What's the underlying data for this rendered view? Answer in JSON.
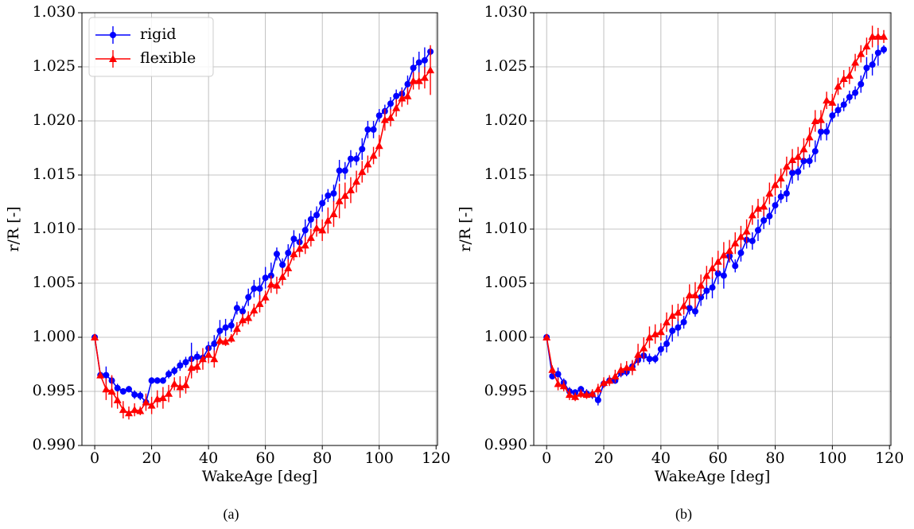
{
  "chart_data": [
    {
      "type": "line",
      "caption": "(a)",
      "x_label": "WakeAge [deg]",
      "y_label": "r/R [-]",
      "grid": true,
      "legend": "upper left",
      "xlim": [
        -4.5,
        120.5
      ],
      "xticks": [
        0,
        20,
        40,
        60,
        80,
        100,
        120
      ],
      "ylim": [
        0.99,
        1.03
      ],
      "yticks": [
        {
          "value": 0.99,
          "label": "0.990"
        },
        0.995,
        {
          "value": 1.0,
          "label": "1.000"
        },
        1.005,
        {
          "value": 1.01,
          "label": "1.010"
        },
        1.015,
        {
          "value": 1.02,
          "label": "1.020"
        },
        1.025,
        {
          "value": 1.03,
          "label": "1.030"
        }
      ],
      "x": [
        0,
        2,
        4,
        6,
        8,
        10,
        12,
        14,
        16,
        18,
        20,
        22,
        24,
        26,
        28,
        30,
        32,
        34,
        36,
        38,
        40,
        42,
        44,
        46,
        48,
        50,
        52,
        54,
        56,
        58,
        60,
        62,
        64,
        66,
        68,
        70,
        72,
        74,
        76,
        78,
        80,
        82,
        84,
        86,
        88,
        90,
        92,
        94,
        96,
        98,
        100,
        102,
        104,
        106,
        108,
        110,
        112,
        114,
        116,
        118
      ],
      "series": [
        {
          "name": "rigid",
          "color": "#0000ff",
          "marker": "o",
          "values": [
            1.0,
            0.9965,
            0.9965,
            0.996,
            0.9953,
            0.995,
            0.9952,
            0.9947,
            0.9946,
            0.994,
            0.996,
            0.996,
            0.996,
            0.9966,
            0.9969,
            0.9974,
            0.9977,
            0.998,
            0.9982,
            0.9981,
            0.999,
            0.9994,
            1.0006,
            1.0009,
            1.0011,
            1.0027,
            1.0024,
            1.0037,
            1.0045,
            1.0045,
            1.0055,
            1.0057,
            1.0077,
            1.0067,
            1.0078,
            1.0091,
            1.0088,
            1.0099,
            1.0109,
            1.0113,
            1.0124,
            1.0131,
            1.0133,
            1.0154,
            1.0154,
            1.0165,
            1.0165,
            1.0174,
            1.0192,
            1.0192,
            1.0205,
            1.0209,
            1.0216,
            1.0223,
            1.0225,
            1.0234,
            1.0249,
            1.0254,
            1.0256,
            1.0264
          ],
          "errors": [
            0,
            0.0003,
            0.0008,
            0.0004,
            0.0004,
            0.0003,
            0.0003,
            0.0004,
            0.0004,
            0.0004,
            0.0003,
            0.0003,
            0.0003,
            0.0004,
            0.0004,
            0.0005,
            0.0005,
            0.0015,
            0.0005,
            0.0004,
            0.0006,
            0.0008,
            0.001,
            0.0008,
            0.0006,
            0.0006,
            0.0005,
            0.0008,
            0.0008,
            0.001,
            0.001,
            0.0012,
            0.0006,
            0.0006,
            0.0008,
            0.0008,
            0.0008,
            0.001,
            0.0008,
            0.0008,
            0.0008,
            0.0006,
            0.0008,
            0.001,
            0.0008,
            0.0008,
            0.0006,
            0.001,
            0.0008,
            0.0008,
            0.0006,
            0.0006,
            0.0006,
            0.0006,
            0.0006,
            0.0008,
            0.001,
            0.001,
            0.0012,
            0.0004
          ]
        },
        {
          "name": "flexible",
          "color": "#ff0000",
          "marker": "^",
          "values": [
            1.0,
            0.9965,
            0.9952,
            0.995,
            0.9942,
            0.9933,
            0.993,
            0.9933,
            0.9932,
            0.994,
            0.9937,
            0.9943,
            0.9944,
            0.9948,
            0.9957,
            0.9954,
            0.9956,
            0.9972,
            0.9973,
            0.998,
            0.9984,
            0.998,
            0.9997,
            0.9996,
            0.9999,
            1.0008,
            1.0016,
            1.0018,
            1.0025,
            1.0031,
            1.0037,
            1.0049,
            1.0048,
            1.0056,
            1.0064,
            1.0077,
            1.0082,
            1.0085,
            1.0092,
            1.0101,
            1.0099,
            1.0108,
            1.0114,
            1.0126,
            1.0131,
            1.0136,
            1.0144,
            1.0153,
            1.016,
            1.0168,
            1.0177,
            1.0201,
            1.0203,
            1.0212,
            1.0221,
            1.0223,
            1.0237,
            1.0237,
            1.024,
            1.0247
          ],
          "errors": [
            0,
            0.0003,
            0.001,
            0.0015,
            0.0008,
            0.0008,
            0.0006,
            0.0006,
            0.0004,
            0.0008,
            0.0008,
            0.0008,
            0.001,
            0.0008,
            0.0006,
            0.001,
            0.0008,
            0.001,
            0.0006,
            0.001,
            0.0008,
            0.0008,
            0.0004,
            0.0004,
            0.0004,
            0.0006,
            0.0006,
            0.0006,
            0.0006,
            0.0008,
            0.0006,
            0.0008,
            0.0008,
            0.0008,
            0.0008,
            0.0006,
            0.0008,
            0.0008,
            0.0008,
            0.0008,
            0.001,
            0.0012,
            0.0012,
            0.0016,
            0.0012,
            0.0012,
            0.001,
            0.001,
            0.0008,
            0.0008,
            0.001,
            0.001,
            0.0008,
            0.0008,
            0.0008,
            0.0008,
            0.0008,
            0.0008,
            0.001,
            0.0023
          ]
        }
      ]
    },
    {
      "type": "line",
      "caption": "(b)",
      "x_label": "WakeAge [deg]",
      "y_label": "r/R [-]",
      "grid": true,
      "xlim": [
        -4.5,
        120.5
      ],
      "xticks": [
        0,
        20,
        40,
        60,
        80,
        100,
        120
      ],
      "ylim": [
        0.99,
        1.03
      ],
      "yticks": [
        {
          "value": 0.99,
          "label": "0.990"
        },
        0.995,
        {
          "value": 1.0,
          "label": "1.000"
        },
        1.005,
        {
          "value": 1.01,
          "label": "1.010"
        },
        1.015,
        {
          "value": 1.02,
          "label": "1.020"
        },
        1.025,
        {
          "value": 1.03,
          "label": "1.030"
        }
      ],
      "x": [
        0,
        2,
        4,
        6,
        8,
        10,
        12,
        14,
        16,
        18,
        20,
        22,
        24,
        26,
        28,
        30,
        32,
        34,
        36,
        38,
        40,
        42,
        44,
        46,
        48,
        50,
        52,
        54,
        56,
        58,
        60,
        62,
        64,
        66,
        68,
        70,
        72,
        74,
        76,
        78,
        80,
        82,
        84,
        86,
        88,
        90,
        92,
        94,
        96,
        98,
        100,
        102,
        104,
        106,
        108,
        110,
        112,
        114,
        116,
        118
      ],
      "series": [
        {
          "color": "#0000ff",
          "marker": "o",
          "values": [
            1.0,
            0.9964,
            0.9966,
            0.9958,
            0.995,
            0.9949,
            0.9952,
            0.9948,
            0.9947,
            0.9942,
            0.9957,
            0.996,
            0.996,
            0.9967,
            0.9968,
            0.9973,
            0.9979,
            0.9983,
            0.998,
            0.998,
            0.9989,
            0.9994,
            1.0006,
            1.0009,
            1.0014,
            1.0027,
            1.0024,
            1.0037,
            1.0043,
            1.0046,
            1.0059,
            1.0057,
            1.0075,
            1.0066,
            1.0078,
            1.009,
            1.0089,
            1.0099,
            1.0108,
            1.0112,
            1.0122,
            1.013,
            1.0133,
            1.0152,
            1.0153,
            1.0163,
            1.0163,
            1.0172,
            1.019,
            1.019,
            1.0205,
            1.021,
            1.0215,
            1.0222,
            1.0226,
            1.0234,
            1.0249,
            1.0252,
            1.0263,
            1.0266
          ],
          "errors": [
            0,
            0.0003,
            0.0006,
            0.0004,
            0.0004,
            0.0003,
            0.0003,
            0.0004,
            0.0004,
            0.0005,
            0.0003,
            0.0003,
            0.0003,
            0.0004,
            0.0004,
            0.0005,
            0.0005,
            0.0006,
            0.0005,
            0.0004,
            0.0006,
            0.0008,
            0.001,
            0.0008,
            0.0006,
            0.0006,
            0.0005,
            0.0008,
            0.0008,
            0.001,
            0.001,
            0.0012,
            0.0006,
            0.0006,
            0.0008,
            0.0008,
            0.0008,
            0.001,
            0.0008,
            0.0008,
            0.0008,
            0.0006,
            0.0008,
            0.001,
            0.0008,
            0.0008,
            0.0006,
            0.001,
            0.0008,
            0.0008,
            0.0006,
            0.0006,
            0.0006,
            0.0006,
            0.0006,
            0.0008,
            0.001,
            0.001,
            0.0012,
            0.0004
          ]
        },
        {
          "color": "#ff0000",
          "marker": "^",
          "values": [
            1.0,
            0.997,
            0.9957,
            0.9955,
            0.9947,
            0.9945,
            0.9948,
            0.9947,
            0.9948,
            0.9952,
            0.9958,
            0.996,
            0.9964,
            0.997,
            0.9972,
            0.9972,
            0.9984,
            0.999,
            1.0,
            1.0003,
            1.0005,
            1.0014,
            1.002,
            1.0023,
            1.0029,
            1.0039,
            1.0039,
            1.0048,
            1.0057,
            1.0064,
            1.007,
            1.0076,
            1.008,
            1.0087,
            1.0093,
            1.0098,
            1.0113,
            1.0119,
            1.0121,
            1.0133,
            1.0141,
            1.0147,
            1.0158,
            1.0164,
            1.0167,
            1.0174,
            1.0185,
            1.02,
            1.0201,
            1.0219,
            1.0217,
            1.0232,
            1.0239,
            1.0242,
            1.0254,
            1.0262,
            1.0269,
            1.0278,
            1.0278,
            1.0278
          ],
          "errors": [
            0,
            0.0004,
            0.0006,
            0.0005,
            0.0005,
            0.0004,
            0.0004,
            0.0004,
            0.0004,
            0.0005,
            0.0005,
            0.0005,
            0.0006,
            0.0006,
            0.0006,
            0.0007,
            0.001,
            0.001,
            0.001,
            0.0009,
            0.0008,
            0.0009,
            0.001,
            0.0008,
            0.0008,
            0.001,
            0.0012,
            0.001,
            0.0009,
            0.001,
            0.001,
            0.0012,
            0.001,
            0.001,
            0.001,
            0.0011,
            0.0009,
            0.0009,
            0.0009,
            0.001,
            0.001,
            0.0009,
            0.0009,
            0.001,
            0.0009,
            0.001,
            0.0009,
            0.001,
            0.0009,
            0.0008,
            0.0008,
            0.0008,
            0.0008,
            0.0008,
            0.0008,
            0.0008,
            0.0008,
            0.001,
            0.0008,
            0.0006
          ]
        }
      ]
    }
  ]
}
